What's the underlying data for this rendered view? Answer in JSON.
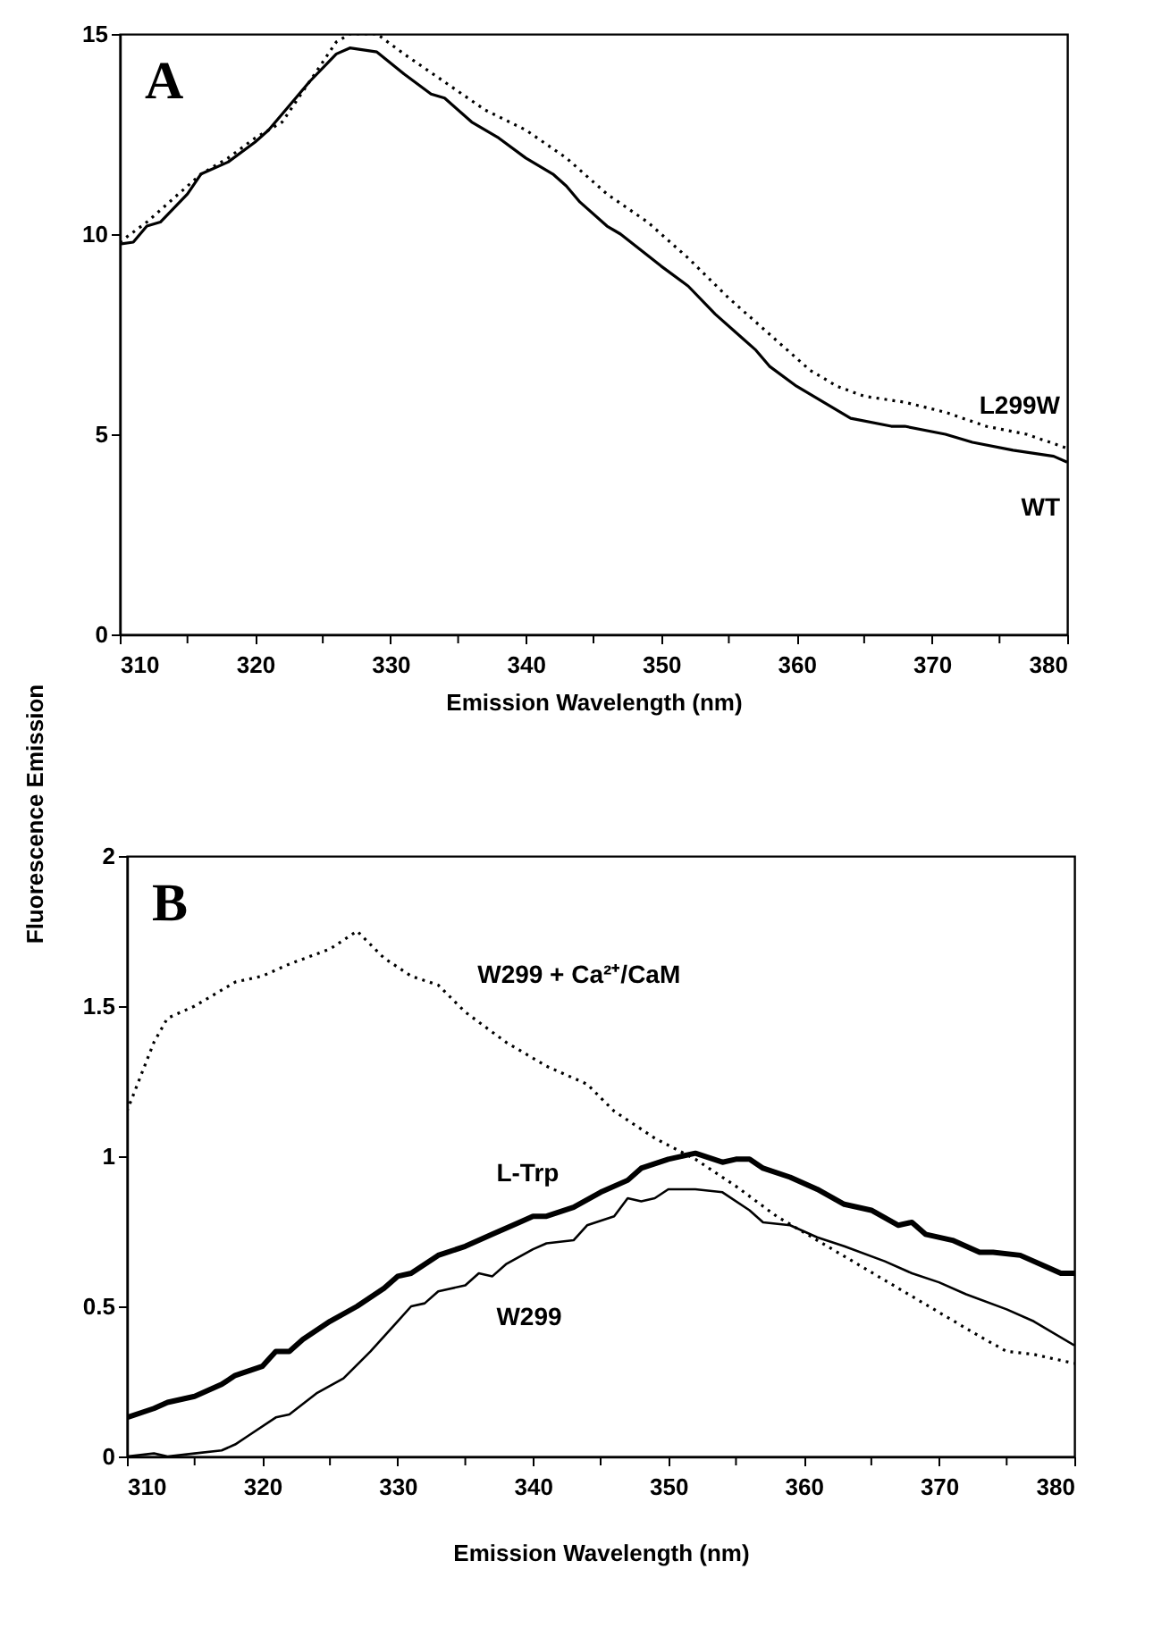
{
  "chart_data": [
    {
      "type": "line",
      "title": "A",
      "xlabel": "Emission Wavelength (nm)",
      "ylabel": "Fluorescence Emission",
      "xlim": [
        310,
        380
      ],
      "ylim": [
        0,
        15
      ],
      "xticks": [
        310,
        {
          "value": 315,
          "label": null
        },
        320,
        {
          "value": 325,
          "label": null
        },
        330,
        {
          "value": 335,
          "label": null
        },
        340,
        {
          "value": 345,
          "label": null
        },
        350,
        {
          "value": 355,
          "label": null
        },
        360,
        {
          "value": 365,
          "label": null
        },
        370,
        {
          "value": 375,
          "label": null
        },
        380
      ],
      "yticks": [
        0,
        5,
        10,
        15
      ],
      "grid": false,
      "series": [
        {
          "name": "L299W",
          "color": "#000000",
          "line_style": "dotted",
          "x": [
            310,
            312,
            316,
            318,
            320,
            322,
            324,
            326,
            327,
            329,
            331,
            334,
            337,
            340,
            343,
            346,
            349,
            352,
            355,
            358,
            361,
            363,
            365,
            368,
            371,
            374,
            377,
            380
          ],
          "values": [
            9.8,
            10.3,
            11.5,
            11.9,
            12.4,
            12.8,
            13.8,
            14.8,
            15.0,
            15.0,
            14.5,
            13.8,
            13.1,
            12.6,
            11.9,
            11.0,
            10.3,
            9.4,
            8.4,
            7.5,
            6.6,
            6.2,
            5.95,
            5.8,
            5.55,
            5.2,
            5.0,
            4.65
          ]
        },
        {
          "name": "WT",
          "color": "#000000",
          "line_style": "solid",
          "x": [
            310,
            311,
            312,
            313,
            315,
            316,
            318,
            320,
            321,
            323,
            324,
            326,
            327,
            329,
            331,
            333,
            334,
            336,
            338,
            340,
            342,
            343,
            344,
            346,
            347,
            350,
            352,
            354,
            356,
            357,
            358,
            360,
            362,
            364,
            367,
            368,
            371,
            373,
            376,
            379,
            380
          ],
          "values": [
            9.75,
            9.8,
            10.2,
            10.3,
            11.0,
            11.5,
            11.8,
            12.3,
            12.6,
            13.4,
            13.8,
            14.5,
            14.65,
            14.55,
            14.0,
            13.5,
            13.4,
            12.8,
            12.4,
            11.9,
            11.5,
            11.2,
            10.8,
            10.2,
            10.0,
            9.2,
            8.7,
            8.0,
            7.4,
            7.1,
            6.7,
            6.2,
            5.8,
            5.4,
            5.2,
            5.2,
            5.0,
            4.8,
            4.6,
            4.45,
            4.3
          ]
        }
      ]
    },
    {
      "type": "line",
      "title": "B",
      "xlabel": "Emission Wavelength (nm)",
      "xlim": [
        310,
        380
      ],
      "ylim": [
        0,
        2
      ],
      "xticks": [
        310,
        {
          "value": 315,
          "label": null
        },
        320,
        {
          "value": 325,
          "label": null
        },
        330,
        {
          "value": 335,
          "label": null
        },
        340,
        {
          "value": 345,
          "label": null
        },
        350,
        {
          "value": 355,
          "label": null
        },
        360,
        {
          "value": 365,
          "label": null
        },
        370,
        {
          "value": 375,
          "label": null
        },
        380
      ],
      "yticks": [
        0,
        0.5,
        1,
        1.5,
        2
      ],
      "grid": false,
      "series": [
        {
          "name": "W299 + Ca²⁺/CaM",
          "color": "#000000",
          "line_style": "dotted",
          "x": [
            310,
            312,
            313,
            315,
            318,
            320,
            322,
            325,
            327,
            329,
            331,
            333,
            335,
            338,
            341,
            344,
            346,
            349,
            352,
            355,
            358,
            361,
            364,
            367,
            370,
            373,
            375,
            377,
            380
          ],
          "values": [
            1.15,
            1.38,
            1.46,
            1.5,
            1.58,
            1.6,
            1.64,
            1.69,
            1.75,
            1.66,
            1.6,
            1.57,
            1.48,
            1.38,
            1.3,
            1.24,
            1.15,
            1.06,
            0.99,
            0.9,
            0.8,
            0.72,
            0.64,
            0.56,
            0.48,
            0.4,
            0.35,
            0.34,
            0.31
          ]
        },
        {
          "name": "L-Trp",
          "color": "#000000",
          "line_style": "solid",
          "x": [
            310,
            312,
            313,
            315,
            317,
            318,
            320,
            321,
            322,
            323,
            325,
            327,
            329,
            330,
            331,
            333,
            335,
            337,
            339,
            340,
            341,
            343,
            345,
            347,
            348,
            350,
            352,
            354,
            355,
            356,
            357,
            359,
            361,
            363,
            365,
            367,
            368,
            369,
            371,
            373,
            374,
            376,
            378,
            379,
            380
          ],
          "values": [
            0.13,
            0.16,
            0.18,
            0.2,
            0.24,
            0.27,
            0.3,
            0.35,
            0.35,
            0.39,
            0.45,
            0.5,
            0.56,
            0.6,
            0.61,
            0.67,
            0.7,
            0.74,
            0.78,
            0.8,
            0.8,
            0.83,
            0.88,
            0.92,
            0.96,
            0.99,
            1.01,
            0.98,
            0.99,
            0.99,
            0.96,
            0.93,
            0.89,
            0.84,
            0.82,
            0.77,
            0.78,
            0.74,
            0.72,
            0.68,
            0.68,
            0.67,
            0.63,
            0.61,
            0.61
          ]
        },
        {
          "name": "W299",
          "color": "#000000",
          "line_style": "solid",
          "x": [
            310,
            312,
            313,
            315,
            317,
            318,
            319,
            321,
            322,
            324,
            326,
            328,
            330,
            331,
            332,
            333,
            335,
            336,
            337,
            338,
            340,
            341,
            343,
            344,
            346,
            347,
            348,
            349,
            350,
            352,
            354,
            356,
            357,
            359,
            361,
            363,
            366,
            368,
            370,
            372,
            375,
            377,
            380
          ],
          "values": [
            0.0,
            0.01,
            0.0,
            0.01,
            0.02,
            0.04,
            0.07,
            0.13,
            0.14,
            0.21,
            0.26,
            0.35,
            0.45,
            0.5,
            0.51,
            0.55,
            0.57,
            0.61,
            0.6,
            0.64,
            0.69,
            0.71,
            0.72,
            0.77,
            0.8,
            0.86,
            0.85,
            0.86,
            0.89,
            0.89,
            0.88,
            0.82,
            0.78,
            0.77,
            0.73,
            0.7,
            0.65,
            0.61,
            0.58,
            0.54,
            0.49,
            0.45,
            0.37
          ]
        }
      ]
    }
  ]
}
